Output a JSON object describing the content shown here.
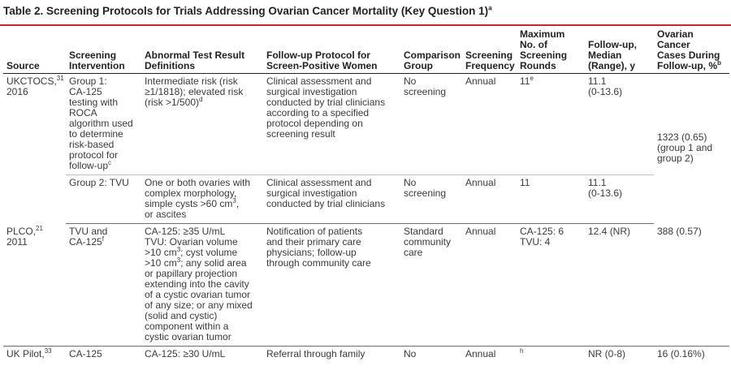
{
  "title": "Table 2. Screening Protocols for Trials Addressing Ovarian Cancer Mortality (Key Question 1)",
  "title_sup": "a",
  "headers": {
    "source": "Source",
    "intervention": "Screening\nIntervention",
    "abnormal": "Abnormal Test Result\nDefinitions",
    "followup_protocol": "Follow-up Protocol for\nScreen-Positive Women",
    "comparison": "Comparison\nGroup",
    "frequency": "Screening\nFrequency",
    "max_rounds": "Maximum\nNo. of\nScreening\nRounds",
    "median": "Follow-up,\nMedian\n(Range), y",
    "cases": "Ovarian Cancer\nCases During\nFollow-up, %",
    "cases_sup": "b"
  },
  "rows": {
    "ukctocs": {
      "source": "UKCTOCS,",
      "source_ref": "31",
      "source_year": "2016",
      "g1": {
        "intervention": "Group 1:\nCA-125\ntesting with\nROCA\nalgorithm used\nto determine\nrisk-based\nprotocol for\nfollow-up",
        "intervention_sup": "c",
        "abnormal": "Intermediate risk (risk\n≥1/1818); elevated risk\n(risk >1/500)",
        "abnormal_sup": "d",
        "followup": "Clinical assessment and\nsurgical investigation\nconducted by trial clinicians\naccording to a specified\nprotocol depending on\nscreening result",
        "comparison": "No\nscreening",
        "frequency": "Annual",
        "max_rounds": "11",
        "max_rounds_sup": "e",
        "median": "11.1\n(0-13.6)"
      },
      "g2": {
        "intervention": "Group 2: TVU",
        "abnormal_a": "One or both ovaries with\ncomplex morphology,\nsimple cysts >60 cm",
        "abnormal_sup": "3",
        "abnormal_b": ",\nor ascites",
        "followup": "Clinical assessment and\nsurgical investigation\nconducted by trial clinicians",
        "comparison": "No\nscreening",
        "frequency": "Annual",
        "max_rounds": "11",
        "median": "11.1\n(0-13.6)"
      },
      "cases": "1323 (0.65)\n(group 1 and\ngroup 2)"
    },
    "plco": {
      "source": "PLCO,",
      "source_ref": "21",
      "source_year": "2011",
      "intervention": "TVU and\nCA-125",
      "intervention_sup": "f",
      "abnormal_1": "CA-125: ≥35 U/mL\nTVU: Ovarian volume\n>10 cm",
      "abnormal_sup_1": "3",
      "abnormal_2": "; cyst volume\n>10 cm",
      "abnormal_sup_2": "3",
      "abnormal_3": "; any solid area\nor papillary projection\nextending into the cavity\nof a cystic ovarian tumor\nof any size; or any mixed\n(solid and cystic)\ncomponent within a\ncystic ovarian tumor",
      "followup": "Notification of patients\nand their primary care\nphysicians; follow-up\nthrough community care",
      "comparison": "Standard\ncommunity\ncare",
      "frequency": "Annual",
      "max_rounds": "CA-125: 6\nTVU: 4",
      "median": "12.4 (NR)",
      "cases": "388 (0.57)"
    },
    "ukpilot": {
      "source": "UK Pilot,",
      "source_ref": "33",
      "intervention": "CA-125",
      "abnormal": "CA-125: ≥30 U/mL",
      "followup": "Referral through family",
      "comparison": "No",
      "frequency": "Annual",
      "max_rounds_sup": "h",
      "median": "NR (0-8)",
      "cases": "16 (0.16%)"
    }
  },
  "colors": {
    "accent_rule": "#c2282e",
    "text": "#231f20"
  }
}
